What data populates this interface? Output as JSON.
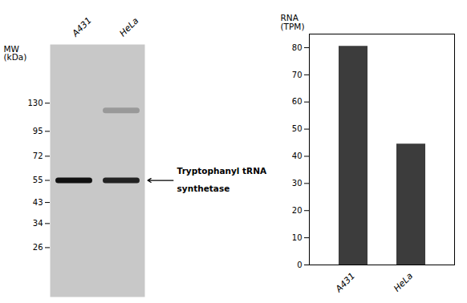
{
  "chart_data": [
    {
      "type": "blot",
      "categories": [
        "A431",
        "HeLa"
      ],
      "ylabel": "MW\n(kDa)",
      "log": "y",
      "ylim": [
        15,
        250
      ],
      "yticks": [
        130,
        95,
        72,
        55,
        43,
        34,
        26
      ],
      "bands": [
        {
          "lane": "A431",
          "mw": 55
        },
        {
          "lane": "HeLa",
          "mw": 55
        },
        {
          "lane": "HeLa",
          "mw": 120
        }
      ],
      "colors": [
        "#111111",
        "#222222",
        "#999999"
      ],
      "annotations": [
        "Tryptophanyl tRNA",
        "synthetase"
      ]
    },
    {
      "type": "bar",
      "categories": [
        "A431",
        "HeLa"
      ],
      "values": [
        80.5,
        44.5
      ],
      "color": "#3c3c3c",
      "ylabel": "RNA\n(TPM)",
      "ylim": [
        0,
        85
      ],
      "yticks": [
        0,
        10,
        20,
        30,
        40,
        50,
        60,
        70,
        80
      ]
    }
  ]
}
